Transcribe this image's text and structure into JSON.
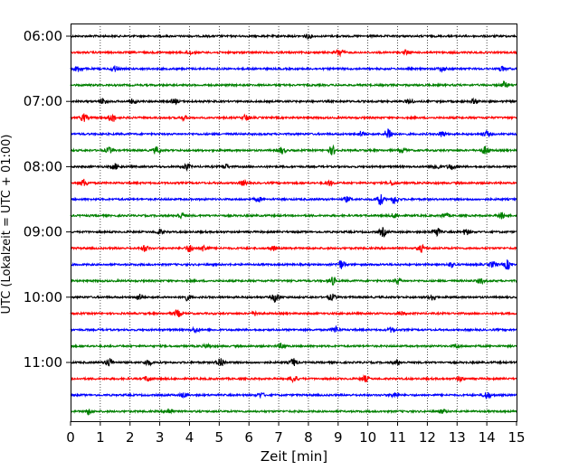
{
  "chart_data": {
    "type": "line",
    "title": "",
    "xlabel": "Zeit  [min]",
    "ylabel": "UTC (Lokalzeit = UTC + 01:00)",
    "xlim": [
      0,
      15
    ],
    "x_ticks": [
      "0",
      "1",
      "2",
      "3",
      "4",
      "5",
      "6",
      "7",
      "8",
      "9",
      "10",
      "11",
      "12",
      "13",
      "14",
      "15"
    ],
    "y_ticks": [
      "06:00",
      "07:00",
      "08:00",
      "09:00",
      "10:00",
      "11:00"
    ],
    "grid": "vertical dotted",
    "trace_interval_min": 15,
    "first_trace": "06:00",
    "colors": [
      "#000000",
      "#ff0000",
      "#0000ff",
      "#008000"
    ],
    "traces": [
      {
        "start": "06:00",
        "color": "#000000",
        "events": [
          [
            8.0,
            2.0
          ]
        ]
      },
      {
        "start": "06:15",
        "color": "#ff0000",
        "events": [
          [
            9.05,
            4.0
          ],
          [
            4.0,
            2.0
          ],
          [
            11.3,
            2.0
          ]
        ]
      },
      {
        "start": "06:30",
        "color": "#0000ff",
        "events": [
          [
            0.25,
            3.0
          ],
          [
            1.5,
            3.0
          ],
          [
            12.5,
            2.5
          ],
          [
            14.5,
            2.5
          ]
        ]
      },
      {
        "start": "06:45",
        "color": "#008000",
        "events": [
          [
            14.6,
            3.0
          ]
        ]
      },
      {
        "start": "07:00",
        "color": "#000000",
        "events": [
          [
            1.1,
            3.5
          ],
          [
            2.1,
            2.5
          ],
          [
            3.5,
            2.5
          ],
          [
            11.4,
            2.5
          ],
          [
            13.6,
            2.5
          ]
        ]
      },
      {
        "start": "07:15",
        "color": "#ff0000",
        "events": [
          [
            0.45,
            4.0
          ],
          [
            1.4,
            4.5
          ],
          [
            5.9,
            3.0
          ],
          [
            3.8,
            2.0
          ]
        ]
      },
      {
        "start": "07:30",
        "color": "#0000ff",
        "events": [
          [
            10.7,
            7.0
          ],
          [
            12.5,
            3.0
          ],
          [
            14.0,
            2.5
          ],
          [
            9.8,
            3.0
          ]
        ]
      },
      {
        "start": "07:45",
        "color": "#008000",
        "events": [
          [
            1.3,
            3.0
          ],
          [
            2.9,
            3.5
          ],
          [
            7.1,
            3.5
          ],
          [
            8.8,
            4.5
          ],
          [
            13.95,
            4.0
          ],
          [
            11.2,
            2.0
          ]
        ]
      },
      {
        "start": "08:00",
        "color": "#000000",
        "events": [
          [
            1.5,
            3.0
          ],
          [
            3.9,
            3.0
          ],
          [
            5.2,
            2.5
          ],
          [
            12.3,
            3.0
          ],
          [
            12.8,
            3.0
          ]
        ]
      },
      {
        "start": "08:15",
        "color": "#ff0000",
        "events": [
          [
            0.45,
            4.0
          ],
          [
            5.8,
            2.5
          ],
          [
            8.7,
            2.5
          ],
          [
            10.8,
            2.5
          ]
        ]
      },
      {
        "start": "08:30",
        "color": "#0000ff",
        "events": [
          [
            10.4,
            6.0
          ],
          [
            10.9,
            4.5
          ],
          [
            6.3,
            2.5
          ],
          [
            9.3,
            2.5
          ]
        ]
      },
      {
        "start": "08:45",
        "color": "#008000",
        "events": [
          [
            3.7,
            3.0
          ],
          [
            10.9,
            2.5
          ],
          [
            12.6,
            2.5
          ],
          [
            14.5,
            3.0
          ]
        ]
      },
      {
        "start": "09:00",
        "color": "#000000",
        "events": [
          [
            10.5,
            4.5
          ],
          [
            12.3,
            5.0
          ],
          [
            13.3,
            3.0
          ],
          [
            3.0,
            2.5
          ]
        ]
      },
      {
        "start": "09:15",
        "color": "#ff0000",
        "events": [
          [
            4.0,
            4.0
          ],
          [
            4.5,
            3.5
          ],
          [
            2.5,
            3.0
          ],
          [
            11.8,
            3.5
          ],
          [
            6.8,
            2.5
          ]
        ]
      },
      {
        "start": "09:30",
        "color": "#0000ff",
        "events": [
          [
            9.1,
            4.5
          ],
          [
            14.7,
            5.0
          ],
          [
            14.2,
            3.0
          ],
          [
            12.8,
            2.5
          ]
        ]
      },
      {
        "start": "09:45",
        "color": "#008000",
        "events": [
          [
            8.8,
            4.0
          ],
          [
            11.0,
            2.5
          ],
          [
            13.8,
            2.5
          ]
        ]
      },
      {
        "start": "10:00",
        "color": "#000000",
        "events": [
          [
            6.9,
            5.0
          ],
          [
            8.8,
            3.0
          ],
          [
            3.9,
            3.0
          ],
          [
            2.3,
            3.0
          ],
          [
            12.2,
            3.0
          ]
        ]
      },
      {
        "start": "10:15",
        "color": "#ff0000",
        "events": [
          [
            3.6,
            3.5
          ],
          [
            6.2,
            2.0
          ],
          [
            11.1,
            2.0
          ]
        ]
      },
      {
        "start": "10:30",
        "color": "#0000ff",
        "events": [
          [
            8.9,
            3.5
          ],
          [
            4.2,
            2.5
          ],
          [
            10.8,
            2.5
          ]
        ]
      },
      {
        "start": "10:45",
        "color": "#008000",
        "events": [
          [
            7.1,
            2.5
          ],
          [
            4.6,
            2.0
          ],
          [
            13.0,
            2.0
          ]
        ]
      },
      {
        "start": "11:00",
        "color": "#000000",
        "events": [
          [
            1.3,
            4.5
          ],
          [
            5.05,
            5.5
          ],
          [
            7.5,
            4.0
          ],
          [
            2.6,
            3.0
          ],
          [
            11.0,
            2.5
          ]
        ]
      },
      {
        "start": "11:15",
        "color": "#ff0000",
        "events": [
          [
            7.5,
            4.0
          ],
          [
            2.6,
            3.0
          ],
          [
            9.9,
            3.0
          ],
          [
            13.1,
            2.5
          ]
        ]
      },
      {
        "start": "11:30",
        "color": "#0000ff",
        "events": [
          [
            14.0,
            4.0
          ],
          [
            6.4,
            2.5
          ],
          [
            10.9,
            3.0
          ],
          [
            3.8,
            2.5
          ]
        ]
      },
      {
        "start": "11:45",
        "color": "#008000",
        "events": [
          [
            3.3,
            3.5
          ],
          [
            0.6,
            3.0
          ],
          [
            12.5,
            2.0
          ]
        ]
      }
    ]
  }
}
